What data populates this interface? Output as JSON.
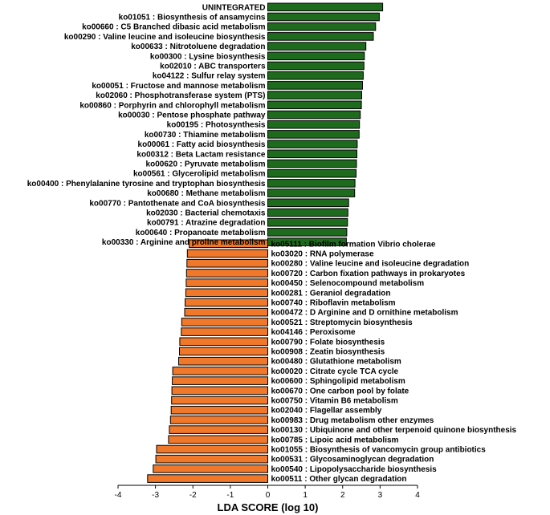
{
  "chart_data": {
    "type": "bar",
    "orientation": "horizontal",
    "xlabel": "LDA SCORE (log 10)",
    "xlim": [
      -4,
      4
    ],
    "xticks": [
      "-4",
      "-3",
      "-2",
      "-1",
      "0",
      "1",
      "2",
      "3",
      "4"
    ],
    "colors": {
      "positive": "#1e6b1e",
      "negative": "#f0782a",
      "outline": "#000000"
    },
    "series": [
      {
        "name": "positive",
        "categories": [
          "UNINTEGRATED",
          "ko01051 : Biosynthesis of ansamycins",
          "ko00660 : C5 Branched dibasic acid metabolism",
          "ko00290 : Valine leucine and isoleucine biosynthesis",
          "ko00633 : Nitrotoluene degradation",
          "ko00300 : Lysine biosynthesis",
          "ko02010 : ABC transporters",
          "ko04122 : Sulfur relay system",
          "ko00051 : Fructose and mannose metabolism",
          "ko02060 : Phosphotransferase system (PTS)",
          "ko00860 : Porphyrin and chlorophyll metabolism",
          "ko00030 : Pentose phosphate pathway",
          "ko00195 : Photosynthesis",
          "ko00730 : Thiamine metabolism",
          "ko00061 : Fatty acid biosynthesis",
          "ko00312 : Beta Lactam resistance",
          "ko00620 : Pyruvate metabolism",
          "ko00561 : Glycerolipid metabolism",
          "ko00400 : Phenylalanine tyrosine and tryptophan biosynthesis",
          "ko00680 : Methane metabolism",
          "ko00770 : Pantothenate and CoA biosynthesis",
          "ko02030 : Bacterial chemotaxis",
          "ko00791 : Atrazine degradation",
          "ko00640 : Propanoate metabolism",
          "ko00330 : Arginine and proline metabolism"
        ],
        "values": [
          3.07,
          2.98,
          2.88,
          2.82,
          2.62,
          2.58,
          2.57,
          2.55,
          2.53,
          2.51,
          2.5,
          2.47,
          2.45,
          2.44,
          2.39,
          2.38,
          2.37,
          2.36,
          2.33,
          2.32,
          2.16,
          2.14,
          2.13,
          2.11,
          2.1
        ]
      },
      {
        "name": "negative",
        "categories": [
          "ko05111 : Biofilm formation Vibrio cholerae",
          "ko03020 : RNA polymerase",
          "ko00280 : Valine leucine and isoleucine degradation",
          "ko00720 : Carbon fixation pathways in prokaryotes",
          "ko00450 : Selenocompound metabolism",
          "ko00281 : Geraniol degradation",
          "ko00740 : Riboflavin metabolism",
          "ko00472 : D Arginine and D ornithine metabolism",
          "ko00521 : Streptomycin biosynthesis",
          "ko04146 : Peroxisome",
          "ko00790 : Folate biosynthesis",
          "ko00908 : Zeatin biosynthesis",
          "ko00480 : Glutathione metabolism",
          "ko00020 : Citrate cycle  TCA cycle",
          "ko00600 : Sphingolipid metabolism",
          "ko00670 : One carbon pool by folate",
          "ko00750 : Vitamin B6 metabolism",
          "ko02040 : Flagellar assembly",
          "ko00983 : Drug metabolism other enzymes",
          "ko00130 : Ubiquinone and other terpenoid quinone biosynthesis",
          "ko00785 : Lipoic acid metabolism",
          "ko01055 : Biosynthesis of vancomycin group antibiotics",
          "ko00531 : Glycosaminoglycan degradation",
          "ko00540 : Lipopolysaccharide biosynthesis",
          "ko00511 : Other glycan degradation"
        ],
        "values": [
          -2.1,
          -2.15,
          -2.16,
          -2.17,
          -2.18,
          -2.19,
          -2.21,
          -2.22,
          -2.3,
          -2.31,
          -2.35,
          -2.36,
          -2.38,
          -2.54,
          -2.55,
          -2.56,
          -2.57,
          -2.58,
          -2.6,
          -2.63,
          -2.65,
          -2.97,
          -2.99,
          -3.06,
          -3.21
        ]
      }
    ]
  }
}
